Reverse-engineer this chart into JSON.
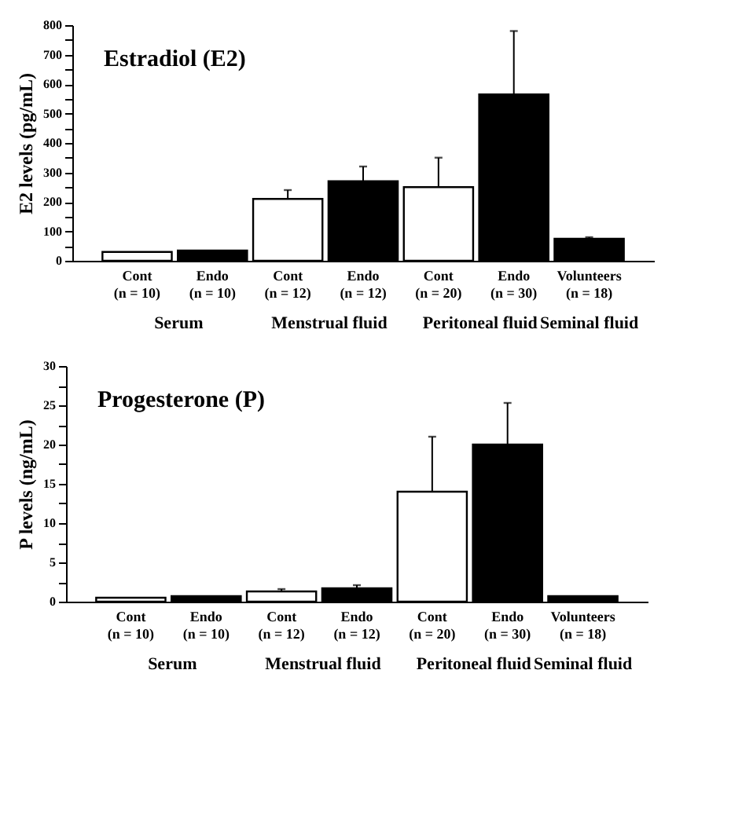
{
  "chart_data": [
    {
      "type": "bar",
      "title": "Estradiol (E2)",
      "ylabel": "E2 levels (pg/mL)",
      "categories": [
        "Cont\n(n = 10)",
        "Endo\n(n = 10)",
        "Cont\n(n = 12)",
        "Endo\n(n = 12)",
        "Cont\n(n = 20)",
        "Endo\n(n = 30)",
        "Volunteers\n(n = 18)"
      ],
      "values": [
        30,
        35,
        210,
        270,
        250,
        565,
        75
      ],
      "colors": [
        "#ffffff",
        "#000000",
        "#ffffff",
        "#000000",
        "#ffffff",
        "#000000",
        "#000000"
      ],
      "errors": [
        null,
        null,
        [
          210,
          240
        ],
        [
          270,
          320
        ],
        [
          250,
          350
        ],
        [
          565,
          780
        ],
        [
          75,
          80
        ]
      ],
      "ylim": [
        0,
        800
      ],
      "yticks": [
        0,
        {
          "value": 50,
          "label": null
        },
        100,
        {
          "value": 150,
          "label": null
        },
        200,
        {
          "value": 250,
          "label": null
        },
        300,
        {
          "value": 350,
          "label": null
        },
        400,
        {
          "value": 450,
          "label": null
        },
        500,
        {
          "value": 550,
          "label": null
        },
        600,
        {
          "value": 650,
          "label": null
        },
        700,
        {
          "value": 750,
          "label": null
        },
        800
      ],
      "grid": false,
      "annotations": [
        "Serum",
        "Menstrual fluid",
        "Peritoneal fluid",
        "Seminal fluid"
      ]
    },
    {
      "type": "bar",
      "title": "Progesterone (P)",
      "ylabel": "P levels (ng/mL)",
      "categories": [
        "Cont\n(n = 10)",
        "Endo\n(n = 10)",
        "Cont\n(n = 12)",
        "Endo\n(n = 12)",
        "Cont\n(n = 20)",
        "Endo\n(n = 30)",
        "Volunteers\n(n = 18)"
      ],
      "values": [
        0.5,
        0.7,
        1.3,
        1.7,
        14,
        20,
        0.7
      ],
      "colors": [
        "#ffffff",
        "#000000",
        "#ffffff",
        "#000000",
        "#ffffff",
        "#000000",
        "#000000"
      ],
      "errors": [
        null,
        null,
        [
          1.3,
          1.6
        ],
        [
          1.7,
          2.1
        ],
        [
          14,
          21
        ],
        [
          20,
          25.3
        ],
        null
      ],
      "ylim": [
        0,
        30
      ],
      "yticks": [
        0,
        {
          "value": 2.5,
          "label": null
        },
        5,
        {
          "value": 7.5,
          "label": null
        },
        10,
        {
          "value": 12.5,
          "label": null
        },
        15,
        {
          "value": 17.5,
          "label": null
        },
        20,
        {
          "value": 22.5,
          "label": null
        },
        25,
        {
          "value": 27.5,
          "label": null
        },
        30
      ],
      "grid": false,
      "annotations": [
        "Serum",
        "Menstrual fluid",
        "Peritoneal fluid",
        "Seminal fluid"
      ]
    }
  ]
}
